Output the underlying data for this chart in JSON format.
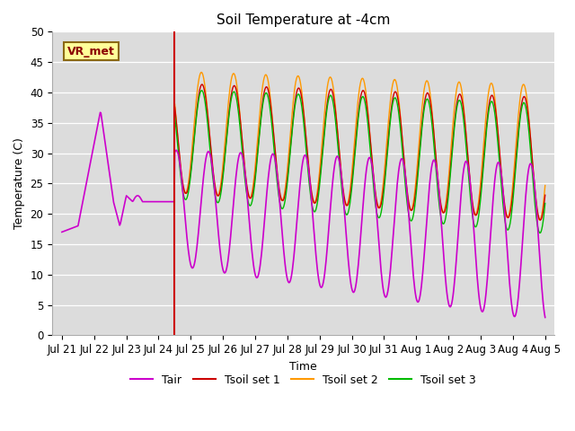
{
  "title": "Soil Temperature at -4cm",
  "xlabel": "Time",
  "ylabel": "Temperature (C)",
  "ylim": [
    0,
    50
  ],
  "bg_color": "#dcdcdc",
  "fig_color": "#ffffff",
  "vline_x": 3.5,
  "vline_color": "#cc0000",
  "label_text": "VR_met",
  "label_box_color": "#ffff99",
  "label_box_edge": "#8b6914",
  "label_text_color": "#8b0000",
  "tair_color": "#cc00cc",
  "tsoil1_color": "#cc0000",
  "tsoil2_color": "#ff9900",
  "tsoil3_color": "#00bb00",
  "xtick_labels": [
    "Jul 21",
    "Jul 22",
    "Jul 23",
    "Jul 24",
    "Jul 25",
    "Jul 26",
    "Jul 27",
    "Jul 28",
    "Jul 29",
    "Jul 30",
    "Jul 31",
    "Aug 1",
    "Aug 2",
    "Aug 3",
    "Aug 4",
    "Aug 5"
  ],
  "xtick_positions": [
    0,
    1,
    2,
    3,
    4,
    5,
    6,
    7,
    8,
    9,
    10,
    11,
    12,
    13,
    14,
    15
  ]
}
